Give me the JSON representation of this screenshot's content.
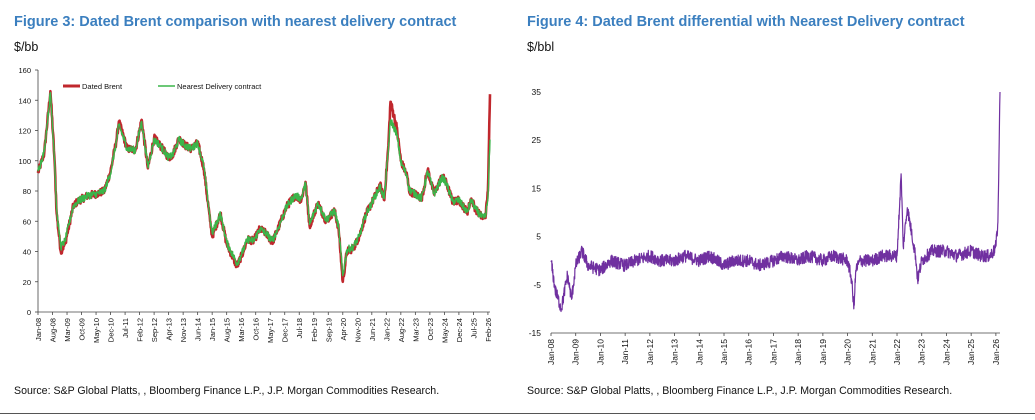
{
  "figures": {
    "left": {
      "title": "Figure 3: Dated Brent comparison with nearest delivery contract",
      "unit": "$/bb",
      "source": "Source: S&P Global Platts, , Bloomberg Finance L.P., J.P. Morgan Commodities Research."
    },
    "right": {
      "title": "Figure 4: Dated Brent differential with Nearest Delivery contract",
      "unit": "$/bbl",
      "source": "Source: S&P Global Platts, , Bloomberg Finance L.P., J.P. Morgan Commodities Research."
    }
  },
  "chart_data": [
    {
      "type": "line",
      "title": "Figure 3: Dated Brent comparison with nearest delivery contract",
      "ylabel": "$/bb",
      "xlabel": "",
      "ylim": [
        0,
        160
      ],
      "yticks": [
        0,
        20,
        40,
        60,
        80,
        100,
        120,
        140,
        160
      ],
      "xlim": [
        "Jan-08",
        "Mar-26"
      ],
      "x_tick_labels": [
        "Jan-08",
        "Aug-08",
        "Mar-09",
        "Oct-09",
        "May-10",
        "Dec-10",
        "Jul-11",
        "Feb-12",
        "Sep-12",
        "Apr-13",
        "Nov-13",
        "Jun-14",
        "Jan-15",
        "Aug-15",
        "Mar-16",
        "Oct-16",
        "May-17",
        "Dec-17",
        "Jul-18",
        "Feb-19",
        "Sep-19",
        "Apr-20",
        "Nov-20",
        "Jun-21",
        "Jan-22",
        "Aug-22",
        "Mar-23",
        "Oct-23",
        "May-24",
        "Dec-24",
        "Jul-25",
        "Feb-26"
      ],
      "grid": false,
      "legend": "top",
      "series": [
        {
          "name": "Dated Brent",
          "color": "#c0272d",
          "x": [
            "Jan-08",
            "Apr-08",
            "Jul-08",
            "Sep-08",
            "Oct-08",
            "Dec-08",
            "Feb-09",
            "Jun-09",
            "Aug-09",
            "Jan-10",
            "May-10",
            "Sep-10",
            "Dec-10",
            "Mar-11",
            "Apr-11",
            "Aug-11",
            "Dec-11",
            "Mar-12",
            "Jun-12",
            "Sep-12",
            "Dec-12",
            "Apr-13",
            "Jun-13",
            "Sep-13",
            "Dec-13",
            "Mar-14",
            "Jun-14",
            "Sep-14",
            "Dec-14",
            "Jan-15",
            "May-15",
            "Aug-15",
            "Jan-16",
            "Apr-16",
            "Jun-16",
            "Sep-16",
            "Dec-16",
            "Mar-17",
            "Jun-17",
            "Sep-17",
            "Jan-18",
            "May-18",
            "Aug-18",
            "Oct-18",
            "Dec-18",
            "Apr-19",
            "Aug-19",
            "Dec-19",
            "Feb-20",
            "Apr-20",
            "Jun-20",
            "Sep-20",
            "Dec-20",
            "Mar-21",
            "Jul-21",
            "Oct-21",
            "Dec-21",
            "Feb-22",
            "Mar-22",
            "Jun-22",
            "Aug-22",
            "Nov-22",
            "Dec-22",
            "Mar-23",
            "Jun-23",
            "Sep-23",
            "Dec-23",
            "Apr-24",
            "Jun-24",
            "Sep-24",
            "Dec-24",
            "Apr-25",
            "Jun-25",
            "Aug-25",
            "Nov-25",
            "Dec-25",
            "Jan-26",
            "Feb-26",
            "Mar-26"
          ],
          "values": [
            92,
            105,
            146,
            100,
            65,
            40,
            45,
            70,
            73,
            77,
            78,
            80,
            93,
            115,
            126,
            108,
            107,
            127,
            95,
            115,
            110,
            102,
            104,
            115,
            110,
            108,
            112,
            95,
            60,
            50,
            65,
            45,
            30,
            40,
            48,
            47,
            55,
            52,
            46,
            56,
            70,
            77,
            74,
            86,
            57,
            72,
            60,
            67,
            55,
            20,
            40,
            42,
            50,
            64,
            75,
            84,
            74,
            110,
            139,
            122,
            100,
            90,
            80,
            78,
            75,
            94,
            78,
            90,
            85,
            73,
            74,
            66,
            75,
            68,
            63,
            62,
            65,
            80,
            144
          ]
        },
        {
          "name": "Nearest Delivery contract",
          "color": "#3bb54a",
          "x": [
            "Jan-08",
            "Apr-08",
            "Jul-08",
            "Sep-08",
            "Oct-08",
            "Dec-08",
            "Feb-09",
            "Jun-09",
            "Aug-09",
            "Jan-10",
            "May-10",
            "Sep-10",
            "Dec-10",
            "Mar-11",
            "Apr-11",
            "Aug-11",
            "Dec-11",
            "Mar-12",
            "Jun-12",
            "Sep-12",
            "Dec-12",
            "Apr-13",
            "Jun-13",
            "Sep-13",
            "Dec-13",
            "Mar-14",
            "Jun-14",
            "Sep-14",
            "Dec-14",
            "Jan-15",
            "May-15",
            "Aug-15",
            "Jan-16",
            "Apr-16",
            "Jun-16",
            "Sep-16",
            "Dec-16",
            "Mar-17",
            "Jun-17",
            "Sep-17",
            "Jan-18",
            "May-18",
            "Aug-18",
            "Oct-18",
            "Dec-18",
            "Apr-19",
            "Aug-19",
            "Dec-19",
            "Feb-20",
            "Apr-20",
            "Jun-20",
            "Sep-20",
            "Dec-20",
            "Mar-21",
            "Jul-21",
            "Oct-21",
            "Dec-21",
            "Feb-22",
            "Mar-22",
            "Jun-22",
            "Aug-22",
            "Nov-22",
            "Dec-22",
            "Mar-23",
            "Jun-23",
            "Sep-23",
            "Dec-23",
            "Apr-24",
            "Jun-24",
            "Sep-24",
            "Dec-24",
            "Apr-25",
            "Jun-25",
            "Aug-25",
            "Nov-25",
            "Dec-25",
            "Jan-26",
            "Feb-26",
            "Mar-26"
          ],
          "values": [
            93,
            106,
            145,
            101,
            67,
            43,
            47,
            70,
            73,
            77,
            78,
            80,
            92,
            114,
            124,
            108,
            107,
            126,
            96,
            114,
            110,
            102,
            104,
            114,
            110,
            108,
            112,
            96,
            62,
            52,
            65,
            46,
            32,
            41,
            48,
            47,
            55,
            52,
            47,
            56,
            70,
            77,
            75,
            85,
            58,
            72,
            61,
            67,
            56,
            24,
            41,
            43,
            50,
            64,
            75,
            83,
            75,
            108,
            127,
            118,
            99,
            90,
            81,
            78,
            75,
            93,
            78,
            89,
            85,
            73,
            74,
            66,
            74,
            68,
            63,
            62,
            64,
            75,
            114
          ]
        }
      ]
    },
    {
      "type": "line",
      "title": "Figure 4: Dated Brent differential with Nearest Delivery contract",
      "ylabel": "$/bbl",
      "xlabel": "",
      "ylim": [
        -15,
        35
      ],
      "yticks": [
        -15,
        -5,
        5,
        15,
        25,
        35
      ],
      "xlim": [
        "Jan-08",
        "Mar-26"
      ],
      "x_tick_labels": [
        "Jan-08",
        "Jan-09",
        "Jan-10",
        "Jan-11",
        "Jan-12",
        "Jan-13",
        "Jan-14",
        "Jan-15",
        "Jan-16",
        "Jan-17",
        "Jan-18",
        "Jan-19",
        "Jan-20",
        "Jan-21",
        "Jan-22",
        "Jan-23",
        "Jan-24",
        "Jan-25",
        "Jan-26"
      ],
      "grid": false,
      "legend": "none",
      "series": [
        {
          "color": "#7030a0",
          "x": [
            "Jan-08",
            "Mar-08",
            "Jun-08",
            "Sep-08",
            "Nov-08",
            "Jan-09",
            "Apr-09",
            "Jul-09",
            "Jan-10",
            "Jun-10",
            "Jan-11",
            "Jun-11",
            "Jan-12",
            "Jun-12",
            "Jan-13",
            "Jun-13",
            "Jan-14",
            "Jun-14",
            "Jan-15",
            "Jun-15",
            "Jan-16",
            "Jun-16",
            "Jan-17",
            "Jun-17",
            "Jan-18",
            "Jun-18",
            "Jan-19",
            "Jun-19",
            "Jan-20",
            "Mar-20",
            "Apr-20",
            "May-20",
            "Jul-20",
            "Jan-21",
            "Jun-21",
            "Jan-22",
            "Mar-22",
            "Apr-22",
            "Jun-22",
            "Aug-22",
            "Oct-22",
            "Nov-22",
            "Jan-23",
            "Jun-23",
            "Jan-24",
            "Jun-24",
            "Jan-25",
            "Jun-25",
            "Oct-25",
            "Dec-25",
            "Jan-26",
            "Feb-26",
            "Mar-26"
          ],
          "values": [
            0,
            -6,
            -10,
            -3,
            -8,
            -1,
            2,
            -1,
            -2,
            0,
            -1,
            0,
            1,
            0,
            0,
            1,
            0,
            1,
            -1,
            0,
            0,
            -1,
            0,
            1,
            0,
            1,
            0,
            1,
            0,
            -4,
            -10,
            -2,
            0,
            0,
            1,
            1,
            18,
            3,
            11,
            6,
            1,
            -4,
            0,
            2,
            2,
            1,
            2,
            1,
            1,
            2,
            3,
            8,
            35
          ]
        }
      ]
    }
  ]
}
